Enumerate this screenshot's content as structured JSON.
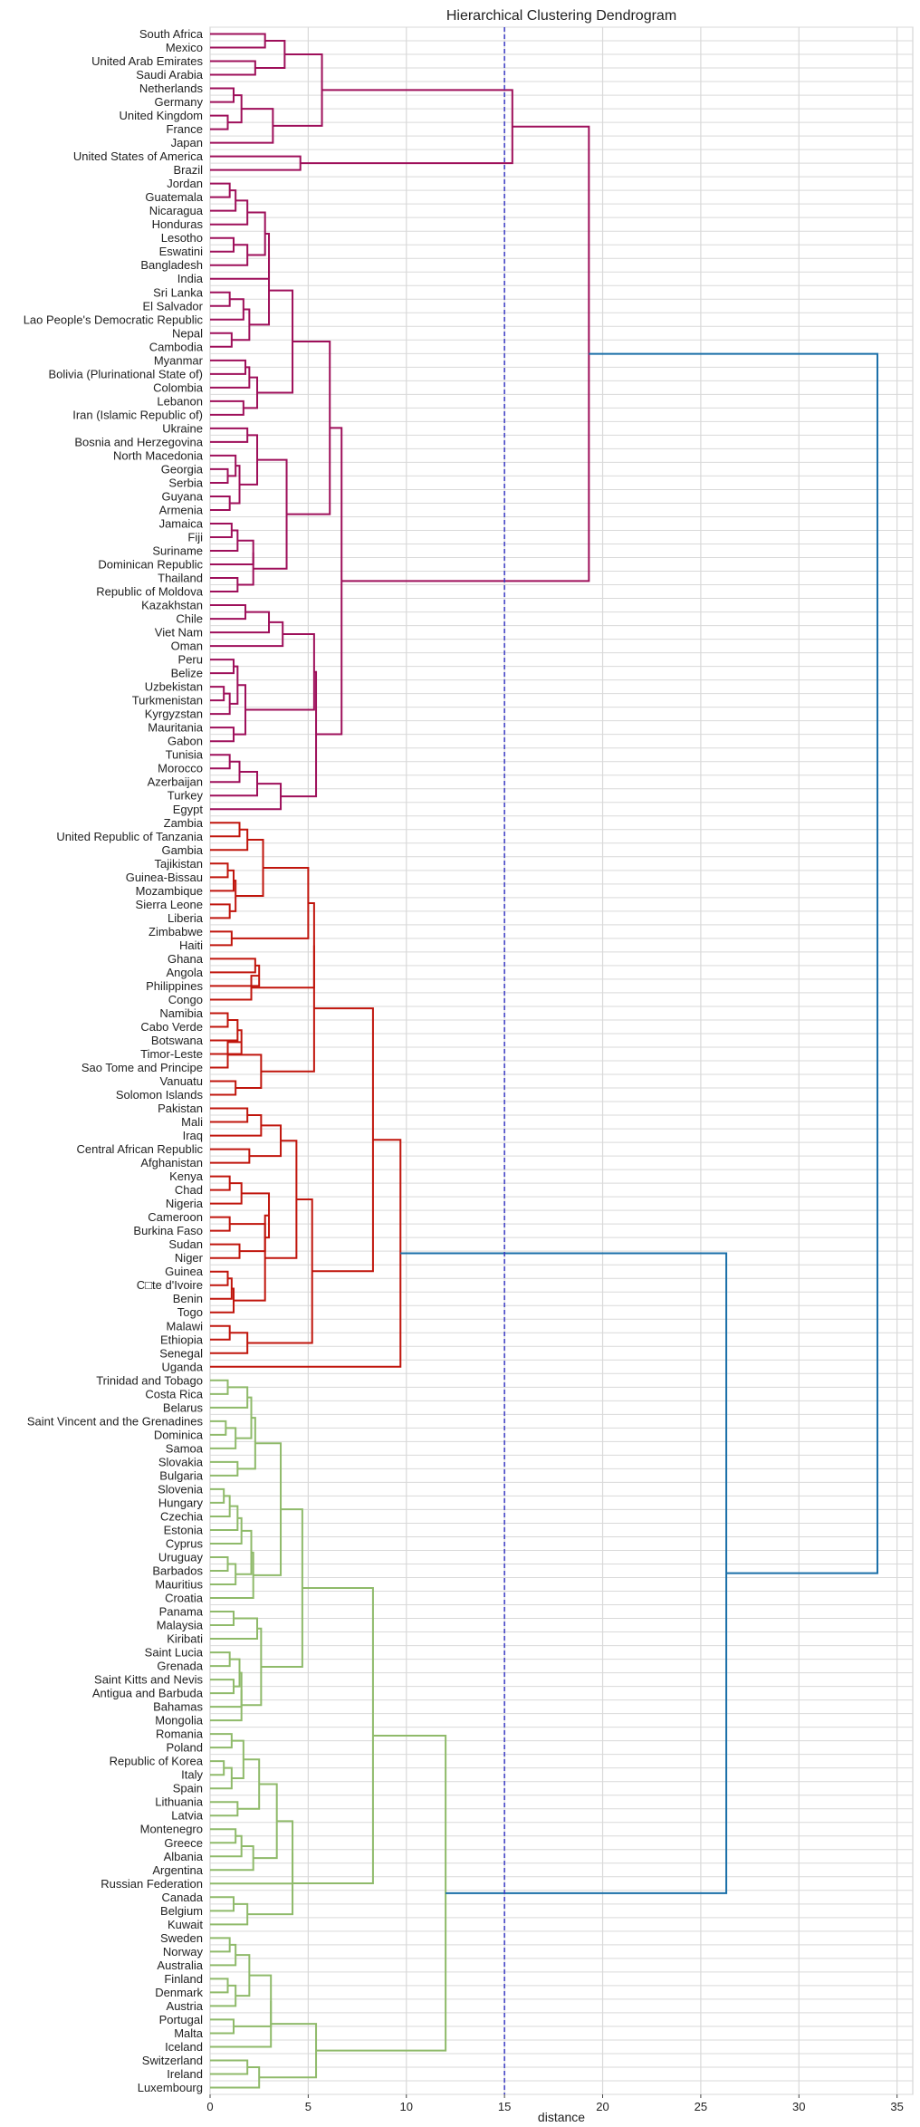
{
  "chart_data": {
    "type": "dendrogram",
    "title": "Hierarchical Clustering Dendrogram",
    "xlabel": "distance",
    "xlim": [
      0,
      35.8
    ],
    "xticks": [
      0,
      5,
      10,
      15,
      20,
      25,
      30,
      35
    ],
    "threshold": 15,
    "grid": true,
    "colors": {
      "cluster_1": "#9e0f5a",
      "cluster_2": "#c0150c",
      "cluster_3": "#8fba6a",
      "above_threshold": "#1a6fa8",
      "threshold_line": "#3b3bc4"
    },
    "leaves": [
      "South Africa",
      "Mexico",
      "United Arab Emirates",
      "Saudi Arabia",
      "Netherlands",
      "Germany",
      "United Kingdom",
      "France",
      "Japan",
      "United States of America",
      "Brazil",
      "Jordan",
      "Guatemala",
      "Nicaragua",
      "Honduras",
      "Lesotho",
      "Eswatini",
      "Bangladesh",
      "India",
      "Sri Lanka",
      "El Salvador",
      "Lao People's Democratic Republic",
      "Nepal",
      "Cambodia",
      "Myanmar",
      "Bolivia (Plurinational State of)",
      "Colombia",
      "Lebanon",
      "Iran (Islamic Republic of)",
      "Ukraine",
      "Bosnia and Herzegovina",
      "North Macedonia",
      "Georgia",
      "Serbia",
      "Guyana",
      "Armenia",
      "Jamaica",
      "Fiji",
      "Suriname",
      "Dominican Republic",
      "Thailand",
      "Republic of Moldova",
      "Kazakhstan",
      "Chile",
      "Viet Nam",
      "Oman",
      "Peru",
      "Belize",
      "Uzbekistan",
      "Turkmenistan",
      "Kyrgyzstan",
      "Mauritania",
      "Gabon",
      "Tunisia",
      "Morocco",
      "Azerbaijan",
      "Turkey",
      "Egypt",
      "Zambia",
      "United Republic of Tanzania",
      "Gambia",
      "Tajikistan",
      "Guinea-Bissau",
      "Mozambique",
      "Sierra Leone",
      "Liberia",
      "Zimbabwe",
      "Haiti",
      "Ghana",
      "Angola",
      "Philippines",
      "Congo",
      "Namibia",
      "Cabo Verde",
      "Botswana",
      "Timor-Leste",
      "Sao Tome and Principe",
      "Vanuatu",
      "Solomon Islands",
      "Pakistan",
      "Mali",
      "Iraq",
      "Central African Republic",
      "Afghanistan",
      "Kenya",
      "Chad",
      "Nigeria",
      "Cameroon",
      "Burkina Faso",
      "Sudan",
      "Niger",
      "Guinea",
      "C□te d'Ivoire",
      "Benin",
      "Togo",
      "Malawi",
      "Ethiopia",
      "Senegal",
      "Uganda",
      "Trinidad and Tobago",
      "Costa Rica",
      "Belarus",
      "Saint Vincent and the Grenadines",
      "Dominica",
      "Samoa",
      "Slovakia",
      "Bulgaria",
      "Slovenia",
      "Hungary",
      "Czechia",
      "Estonia",
      "Cyprus",
      "Uruguay",
      "Barbados",
      "Mauritius",
      "Croatia",
      "Panama",
      "Malaysia",
      "Kiribati",
      "Saint Lucia",
      "Grenada",
      "Saint Kitts and Nevis",
      "Antigua and Barbuda",
      "Bahamas",
      "Mongolia",
      "Romania",
      "Poland",
      "Republic of Korea",
      "Italy",
      "Spain",
      "Lithuania",
      "Latvia",
      "Montenegro",
      "Greece",
      "Albania",
      "Argentina",
      "Russian Federation",
      "Canada",
      "Belgium",
      "Kuwait",
      "Sweden",
      "Norway",
      "Australia",
      "Finland",
      "Denmark",
      "Austria",
      "Portugal",
      "Malta",
      "Iceland",
      "Switzerland",
      "Ireland",
      "Luxembourg"
    ],
    "linkage": [
      [
        "South Africa",
        "Mexico",
        2.8,
        "c1"
      ],
      [
        "Saudi Arabia",
        "United Arab Emirates",
        2.3,
        "c1"
      ],
      [
        "0",
        "1",
        3.8,
        "c1"
      ],
      [
        "Netherlands",
        "Germany",
        1.2,
        "c1"
      ],
      [
        "United Kingdom",
        "France",
        0.9,
        "c1"
      ],
      [
        "3",
        "4",
        1.6,
        "c1"
      ],
      [
        "Japan",
        "5",
        3.2,
        "c1"
      ],
      [
        "2",
        "6",
        5.7,
        "c1"
      ],
      [
        "United States of America",
        "Brazil",
        4.6,
        "c1"
      ],
      [
        "7",
        "8",
        15.4,
        "c1"
      ],
      [
        "Jordan",
        "Guatemala",
        1.0,
        "c1"
      ],
      [
        "10",
        "Nicaragua",
        1.3,
        "c1"
      ],
      [
        "11",
        "Honduras",
        1.9,
        "c1"
      ],
      [
        "Lesotho",
        "Eswatini",
        1.2,
        "c1"
      ],
      [
        "13",
        "Bangladesh",
        1.9,
        "c1"
      ],
      [
        "12",
        "14",
        2.8,
        "c1"
      ],
      [
        "15",
        "India",
        3.0,
        "c1"
      ],
      [
        "Sri Lanka",
        "El Salvador",
        1.0,
        "c1"
      ],
      [
        "17",
        "Lao People's Democratic Republic",
        1.7,
        "c1"
      ],
      [
        "Nepal",
        "Cambodia",
        1.1,
        "c1"
      ],
      [
        "18",
        "19",
        2.0,
        "c1"
      ],
      [
        "16",
        "20",
        3.0,
        "c1"
      ],
      [
        "Myanmar",
        "Bolivia (Plurinational State of)",
        1.8,
        "c1"
      ],
      [
        "22",
        "Colombia",
        2.0,
        "c1"
      ],
      [
        "Lebanon",
        "Iran (Islamic Republic of)",
        1.7,
        "c1"
      ],
      [
        "23",
        "24",
        2.4,
        "c1"
      ],
      [
        "21",
        "25",
        4.2,
        "c1"
      ],
      [
        "Ukraine",
        "Bosnia and Herzegovina",
        1.9,
        "c1"
      ],
      [
        "Georgia",
        "Serbia",
        0.9,
        "c1"
      ],
      [
        "North Macedonia",
        "28",
        1.3,
        "c1"
      ],
      [
        "Guyana",
        "Armenia",
        1.0,
        "c1"
      ],
      [
        "29",
        "30",
        1.5,
        "c1"
      ],
      [
        "27",
        "31",
        2.4,
        "c1"
      ],
      [
        "Jamaica",
        "Fiji",
        1.1,
        "c1"
      ],
      [
        "33",
        "Suriname",
        1.4,
        "c1"
      ],
      [
        "34",
        "Dominican Republic",
        2.2,
        "c1"
      ],
      [
        "Thailand",
        "Republic of Moldova",
        1.4,
        "c1"
      ],
      [
        "35",
        "36",
        2.2,
        "c1"
      ],
      [
        "32",
        "37",
        3.9,
        "c1"
      ],
      [
        "26",
        "38",
        6.1,
        "c1"
      ],
      [
        "Kazakhstan",
        "Chile",
        1.8,
        "c1"
      ],
      [
        "40",
        "Viet Nam",
        3.0,
        "c1"
      ],
      [
        "41",
        "Oman",
        3.7,
        "c1"
      ],
      [
        "Peru",
        "Belize",
        1.2,
        "c1"
      ],
      [
        "Uzbekistan",
        "Turkmenistan",
        0.7,
        "c1"
      ],
      [
        "44",
        "Kyrgyzstan",
        1.0,
        "c1"
      ],
      [
        "43",
        "45",
        1.4,
        "c1"
      ],
      [
        "Mauritania",
        "Gabon",
        1.2,
        "c1"
      ],
      [
        "46",
        "47",
        1.8,
        "c1"
      ],
      [
        "42",
        "48",
        5.3,
        "c1"
      ],
      [
        "Tunisia",
        "Morocco",
        1.0,
        "c1"
      ],
      [
        "50",
        "Azerbaijan",
        1.5,
        "c1"
      ],
      [
        "51",
        "Turkey",
        2.4,
        "c1"
      ],
      [
        "52",
        "Egypt",
        3.6,
        "c1"
      ],
      [
        "49",
        "53",
        5.4,
        "c1"
      ],
      [
        "39",
        "54",
        6.7,
        "c1"
      ],
      [
        "9",
        "55",
        19.3,
        "c1"
      ],
      [
        "Zambia",
        "United Republic of Tanzania",
        1.5,
        "c2"
      ],
      [
        "57",
        "Gambia",
        1.9,
        "c2"
      ],
      [
        "Tajikistan",
        "Guinea-Bissau",
        0.9,
        "c2"
      ],
      [
        "59",
        "Mozambique",
        1.2,
        "c2"
      ],
      [
        "Sierra Leone",
        "Liberia",
        1.0,
        "c2"
      ],
      [
        "60",
        "61",
        1.3,
        "c2"
      ],
      [
        "58",
        "62",
        2.7,
        "c2"
      ],
      [
        "Zimbabwe",
        "Haiti",
        1.1,
        "c2"
      ],
      [
        "63",
        "64",
        5.0,
        "c2"
      ],
      [
        "Ghana",
        "Angola",
        2.3,
        "c2"
      ],
      [
        "66",
        "Philippines",
        2.5,
        "c2"
      ],
      [
        "Congo",
        "67",
        2.1,
        "c2"
      ],
      [
        "65",
        "68",
        5.3,
        "c2"
      ],
      [
        "Namibia",
        "Cabo Verde",
        0.9,
        "c2"
      ],
      [
        "70",
        "Botswana",
        1.4,
        "c2"
      ],
      [
        "71",
        "Timor-Leste",
        1.6,
        "c2"
      ],
      [
        "Sao Tome and Principe",
        "72",
        0.9,
        "c2"
      ],
      [
        "Vanuatu",
        "Solomon Islands",
        1.3,
        "c2"
      ],
      [
        "73",
        "74",
        2.6,
        "c2"
      ],
      [
        "69",
        "75",
        5.3,
        "c2"
      ],
      [
        "Pakistan",
        "Mali",
        1.9,
        "c2"
      ],
      [
        "77",
        "Iraq",
        2.6,
        "c2"
      ],
      [
        "Central African Republic",
        "Afghanistan",
        2.0,
        "c2"
      ],
      [
        "78",
        "79",
        3.6,
        "c2"
      ],
      [
        "Kenya",
        "Chad",
        1.0,
        "c2"
      ],
      [
        "81",
        "Nigeria",
        1.6,
        "c2"
      ],
      [
        "Cameroon",
        "Burkina Faso",
        1.0,
        "c2"
      ],
      [
        "Sudan",
        "Niger",
        1.5,
        "c2"
      ],
      [
        "83",
        "84",
        2.8,
        "c2"
      ],
      [
        "82",
        "85",
        3.0,
        "c2"
      ],
      [
        "Guinea",
        "C□te d'Ivoire",
        0.9,
        "c2"
      ],
      [
        "87",
        "Benin",
        1.1,
        "c2"
      ],
      [
        "88",
        "Togo",
        1.2,
        "c2"
      ],
      [
        "86",
        "89",
        2.8,
        "c2"
      ],
      [
        "80",
        "90",
        4.4,
        "c2"
      ],
      [
        "Malawi",
        "Ethiopia",
        1.0,
        "c2"
      ],
      [
        "92",
        "Senegal",
        1.9,
        "c2"
      ],
      [
        "91",
        "93",
        5.2,
        "c2"
      ],
      [
        "76",
        "94",
        8.3,
        "c2"
      ],
      [
        "95",
        "Uganda",
        9.7,
        "c2"
      ],
      [
        "Trinidad and Tobago",
        "Costa Rica",
        0.9,
        "c3"
      ],
      [
        "97",
        "Belarus",
        1.9,
        "c3"
      ],
      [
        "Saint Vincent and the Grenadines",
        "Dominica",
        0.8,
        "c3"
      ],
      [
        "99",
        "Samoa",
        1.3,
        "c3"
      ],
      [
        "98",
        "100",
        2.1,
        "c3"
      ],
      [
        "Slovakia",
        "Bulgaria",
        1.4,
        "c3"
      ],
      [
        "101",
        "102",
        2.3,
        "c3"
      ],
      [
        "Slovenia",
        "Hungary",
        0.7,
        "c3"
      ],
      [
        "104",
        "Czechia",
        1.0,
        "c3"
      ],
      [
        "105",
        "Estonia",
        1.4,
        "c3"
      ],
      [
        "106",
        "Cyprus",
        1.6,
        "c3"
      ],
      [
        "Uruguay",
        "Barbados",
        0.9,
        "c3"
      ],
      [
        "108",
        "Mauritius",
        1.3,
        "c3"
      ],
      [
        "107",
        "109",
        2.1,
        "c3"
      ],
      [
        "Croatia",
        "110",
        2.2,
        "c3"
      ],
      [
        "103",
        "111",
        3.6,
        "c3"
      ],
      [
        "Panama",
        "Malaysia",
        1.2,
        "c3"
      ],
      [
        "113",
        "Kiribati",
        2.4,
        "c3"
      ],
      [
        "Saint Lucia",
        "Grenada",
        1.0,
        "c3"
      ],
      [
        "Saint Kitts and Nevis",
        "Antigua and Barbuda",
        1.2,
        "c3"
      ],
      [
        "115",
        "116",
        1.5,
        "c3"
      ],
      [
        "117",
        "Bahamas",
        1.6,
        "c3"
      ],
      [
        "118",
        "Mongolia",
        1.6,
        "c3"
      ],
      [
        "114",
        "119",
        2.6,
        "c3"
      ],
      [
        "112",
        "120",
        4.7,
        "c3"
      ],
      [
        "Romania",
        "Poland",
        1.1,
        "c3"
      ],
      [
        "Republic of Korea",
        "Italy",
        0.7,
        "c3"
      ],
      [
        "123",
        "Spain",
        1.1,
        "c3"
      ],
      [
        "122",
        "124",
        1.7,
        "c3"
      ],
      [
        "Lithuania",
        "Latvia",
        1.4,
        "c3"
      ],
      [
        "125",
        "126",
        2.5,
        "c3"
      ],
      [
        "Montenegro",
        "Greece",
        1.3,
        "c3"
      ],
      [
        "128",
        "Albania",
        1.6,
        "c3"
      ],
      [
        "129",
        "Argentina",
        2.2,
        "c3"
      ],
      [
        "127",
        "130",
        3.4,
        "c3"
      ],
      [
        "131",
        "Russian Federation",
        4.2,
        "c3"
      ],
      [
        "Canada",
        "Belgium",
        1.2,
        "c3"
      ],
      [
        "133",
        "Kuwait",
        1.9,
        "c3"
      ],
      [
        "132",
        "134",
        4.2,
        "c3"
      ],
      [
        "121",
        "135",
        8.3,
        "c3"
      ],
      [
        "Sweden",
        "Norway",
        1.0,
        "c3"
      ],
      [
        "137",
        "Australia",
        1.3,
        "c3"
      ],
      [
        "Finland",
        "Denmark",
        0.9,
        "c3"
      ],
      [
        "139",
        "Austria",
        1.3,
        "c3"
      ],
      [
        "138",
        "140",
        2.0,
        "c3"
      ],
      [
        "Portugal",
        "Malta",
        1.2,
        "c3"
      ],
      [
        "141",
        "142",
        3.1,
        "c3"
      ],
      [
        "143",
        "Iceland",
        3.1,
        "c3"
      ],
      [
        "Switzerland",
        "Ireland",
        1.9,
        "c3"
      ],
      [
        "145",
        "Luxembourg",
        2.5,
        "c3"
      ],
      [
        "144",
        "146",
        5.4,
        "c3"
      ],
      [
        "136",
        "147",
        12.0,
        "c3"
      ],
      [
        "96",
        "148",
        26.3,
        "above"
      ],
      [
        "56",
        "149",
        34.0,
        "above"
      ]
    ]
  }
}
